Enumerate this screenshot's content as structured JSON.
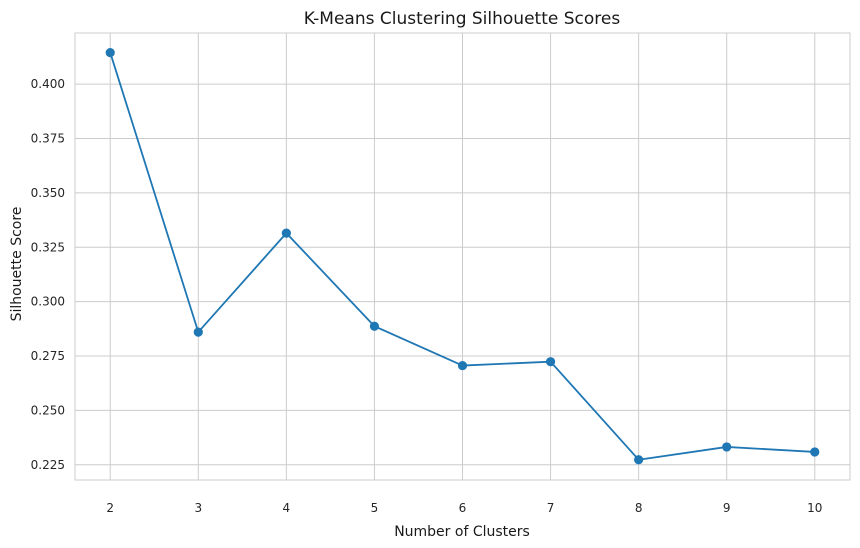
{
  "chart_data": {
    "type": "line",
    "title": "K-Means Clustering Silhouette Scores",
    "xlabel": "Number of Clusters",
    "ylabel": "Silhouette Score",
    "x": [
      2,
      3,
      4,
      5,
      6,
      7,
      8,
      9,
      10
    ],
    "y": [
      0.4145,
      0.286,
      0.3315,
      0.2887,
      0.2706,
      0.2724,
      0.2273,
      0.2332,
      0.2309
    ],
    "x_ticks": [
      "2",
      "3",
      "4",
      "5",
      "6",
      "7",
      "8",
      "9",
      "10"
    ],
    "y_ticks": [
      "0.225",
      "0.250",
      "0.275",
      "0.300",
      "0.325",
      "0.350",
      "0.375",
      "0.400"
    ],
    "xlim": [
      1.6,
      10.4
    ],
    "ylim": [
      0.218,
      0.4235
    ],
    "grid": true,
    "colors": {
      "line": "#1f77b4",
      "marker": "#1f77b4",
      "grid": "#cccccc",
      "frame": "#cccccc"
    }
  }
}
